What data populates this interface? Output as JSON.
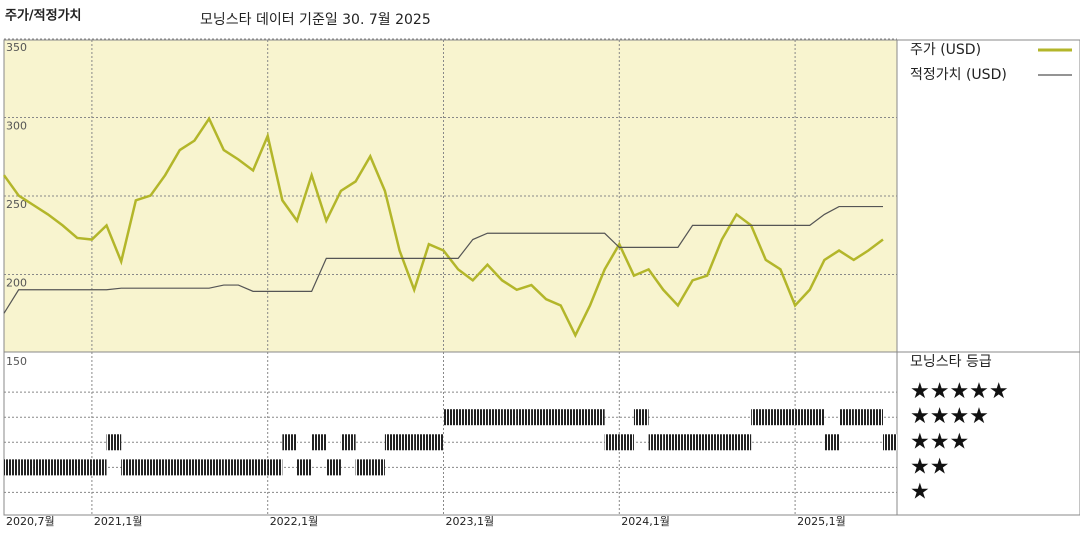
{
  "chart_data": [
    {
      "type": "line",
      "title": "주가/적정가치",
      "subtitle": "모닝스타 데이터 기준일 30. 7월 2025",
      "x": [
        "2020-07",
        "2020-08",
        "2020-09",
        "2020-10",
        "2020-11",
        "2020-12",
        "2021-01",
        "2021-02",
        "2021-03",
        "2021-04",
        "2021-05",
        "2021-06",
        "2021-07",
        "2021-08",
        "2021-09",
        "2021-10",
        "2021-11",
        "2021-12",
        "2022-01",
        "2022-02",
        "2022-03",
        "2022-04",
        "2022-05",
        "2022-06",
        "2022-07",
        "2022-08",
        "2022-09",
        "2022-10",
        "2022-11",
        "2022-12",
        "2023-01",
        "2023-02",
        "2023-03",
        "2023-04",
        "2023-05",
        "2023-06",
        "2023-07",
        "2023-08",
        "2023-09",
        "2023-10",
        "2023-11",
        "2023-12",
        "2024-01",
        "2024-02",
        "2024-03",
        "2024-04",
        "2024-05",
        "2024-06",
        "2024-07",
        "2024-08",
        "2024-09",
        "2024-10",
        "2024-11",
        "2024-12",
        "2025-01",
        "2025-02",
        "2025-03",
        "2025-04",
        "2025-05",
        "2025-06",
        "2025-07"
      ],
      "series": [
        {
          "name": "주가 (USD)",
          "color": "#b3b62a",
          "values": [
            269,
            256,
            250,
            244,
            237,
            229,
            228,
            237,
            214,
            253,
            256,
            269,
            285,
            291,
            305,
            285,
            279,
            272,
            294,
            253,
            240,
            269,
            240,
            259,
            265,
            281,
            259,
            221,
            196,
            225,
            221,
            209,
            202,
            212,
            202,
            196,
            199,
            190,
            186,
            167,
            186,
            209,
            225,
            205,
            209,
            196,
            186,
            202,
            205,
            228,
            244,
            237,
            215,
            209,
            186,
            196,
            215,
            221,
            215,
            221,
            228
          ]
        },
        {
          "name": "적정가치 (USD)",
          "color": "#555555",
          "values": [
            181,
            196,
            196,
            196,
            196,
            196,
            196,
            196,
            197,
            197,
            197,
            197,
            197,
            197,
            197,
            199,
            199,
            195,
            195,
            195,
            195,
            195,
            216,
            216,
            216,
            216,
            216,
            216,
            216,
            216,
            216,
            216,
            228,
            232,
            232,
            232,
            232,
            232,
            232,
            232,
            232,
            232,
            223,
            223,
            223,
            223,
            223,
            237,
            237,
            237,
            237,
            237,
            237,
            237,
            237,
            237,
            244,
            249,
            249,
            249,
            249
          ]
        }
      ],
      "xticks": [
        {
          "value": "2020-07",
          "label": "2020,7월"
        },
        {
          "value": "2021-01",
          "label": "2021,1월"
        },
        {
          "value": "2022-01",
          "label": "2022,1월"
        },
        {
          "value": "2023-01",
          "label": "2023,1월"
        },
        {
          "value": "2024-01",
          "label": "2024,1월"
        },
        {
          "value": "2025-01",
          "label": "2025,1월"
        }
      ],
      "ylim": [
        150,
        355
      ],
      "yticks": [
        150,
        200,
        250,
        300,
        350
      ],
      "grid": true
    },
    {
      "type": "rating",
      "title": "모닝스타 등급",
      "values": [
        2,
        2,
        2,
        2,
        2,
        2,
        2,
        3,
        2,
        2,
        2,
        2,
        2,
        2,
        2,
        2,
        2,
        2,
        2,
        3,
        2,
        3,
        2,
        3,
        2,
        2,
        3,
        3,
        3,
        3,
        4,
        4,
        4,
        4,
        4,
        4,
        4,
        4,
        4,
        4,
        4,
        3,
        3,
        4,
        3,
        3,
        3,
        3,
        3,
        3,
        3,
        4,
        4,
        4,
        4,
        4,
        3,
        4,
        4,
        4,
        3
      ],
      "ylim": [
        0.1,
        6.6
      ],
      "yticks": [
        {
          "value": 5,
          "label": "★★★★★"
        },
        {
          "value": 4,
          "label": "★★★★"
        },
        {
          "value": 3,
          "label": "★★★"
        },
        {
          "value": 2,
          "label": "★★"
        },
        {
          "value": 1,
          "label": "★"
        }
      ]
    }
  ]
}
